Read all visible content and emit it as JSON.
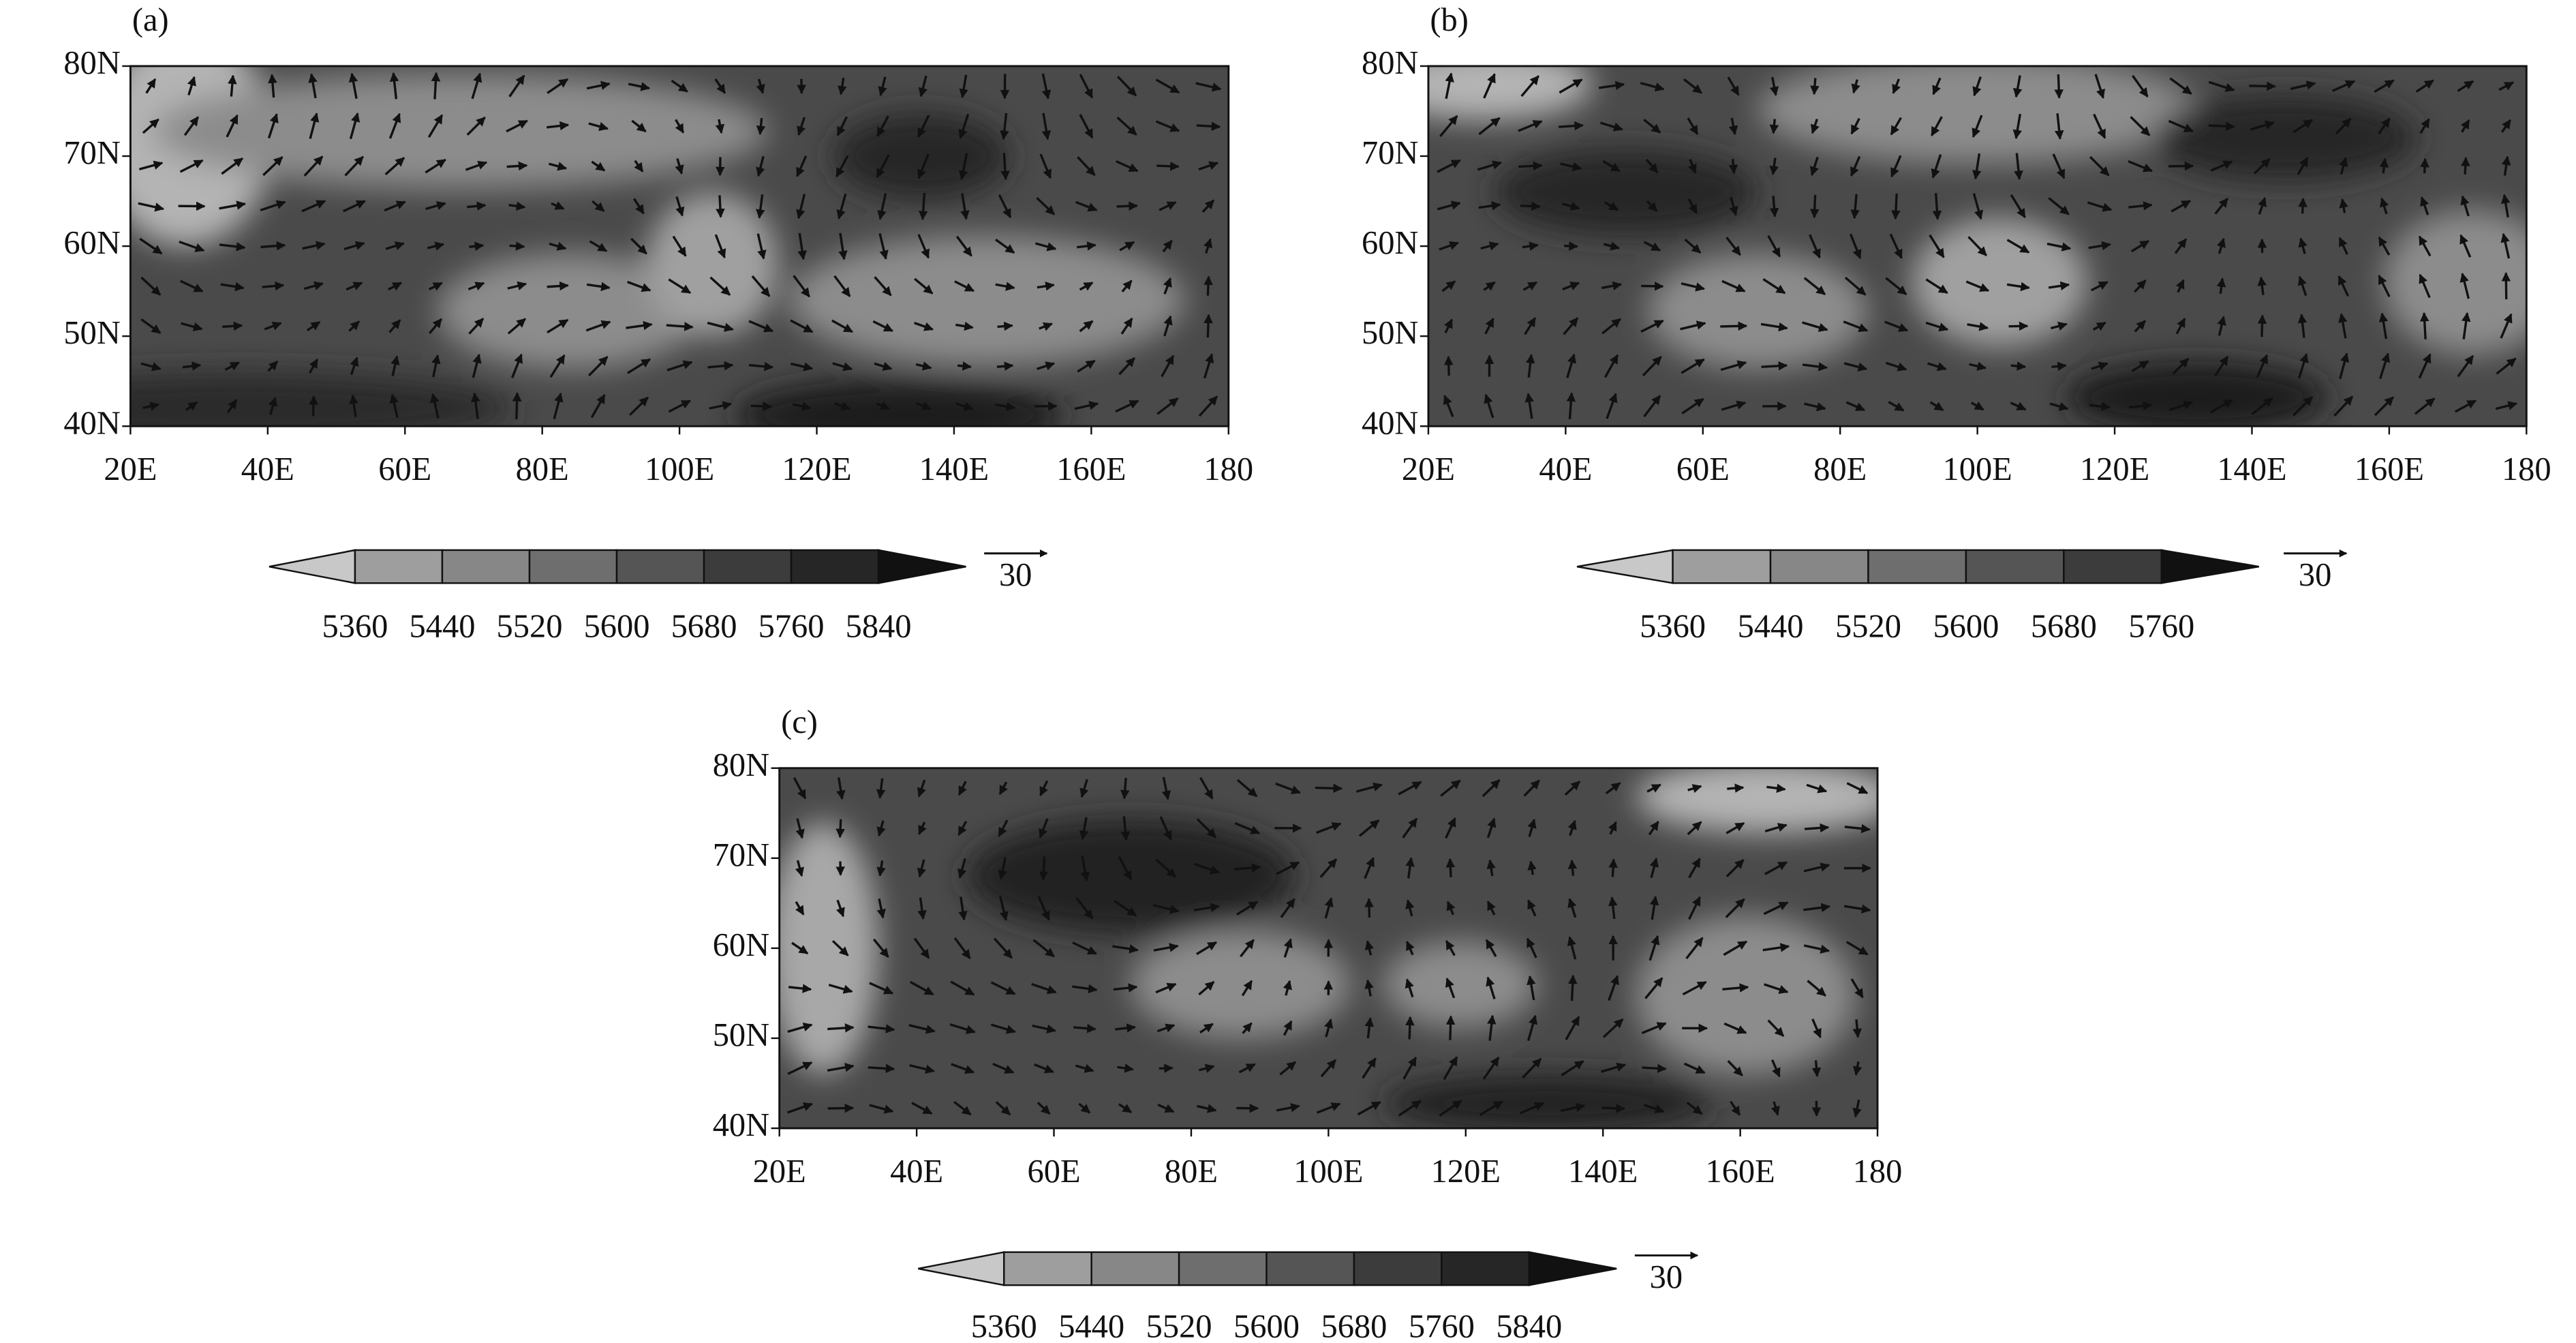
{
  "panels": [
    {
      "label": "(a)",
      "yticks": [
        "80N",
        "70N",
        "60N",
        "50N",
        "40N"
      ],
      "xticks": [
        "20E",
        "40E",
        "60E",
        "80E",
        "100E",
        "120E",
        "140E",
        "160E",
        "180"
      ],
      "colorbar": {
        "levels": [
          5360,
          5440,
          5520,
          5600,
          5680,
          5760,
          5840
        ]
      },
      "reference_vector": 30
    },
    {
      "label": "(b)",
      "yticks": [
        "80N",
        "70N",
        "60N",
        "50N",
        "40N"
      ],
      "xticks": [
        "20E",
        "40E",
        "60E",
        "80E",
        "100E",
        "120E",
        "140E",
        "160E",
        "180"
      ],
      "colorbar": {
        "levels": [
          5360,
          5440,
          5520,
          5600,
          5680,
          5760
        ]
      },
      "reference_vector": 30
    },
    {
      "label": "(c)",
      "yticks": [
        "80N",
        "70N",
        "60N",
        "50N",
        "40N"
      ],
      "xticks": [
        "20E",
        "40E",
        "60E",
        "80E",
        "100E",
        "120E",
        "140E",
        "160E",
        "180"
      ],
      "colorbar": {
        "levels": [
          5360,
          5440,
          5520,
          5600,
          5680,
          5760,
          5840
        ]
      },
      "reference_vector": 30
    }
  ]
}
